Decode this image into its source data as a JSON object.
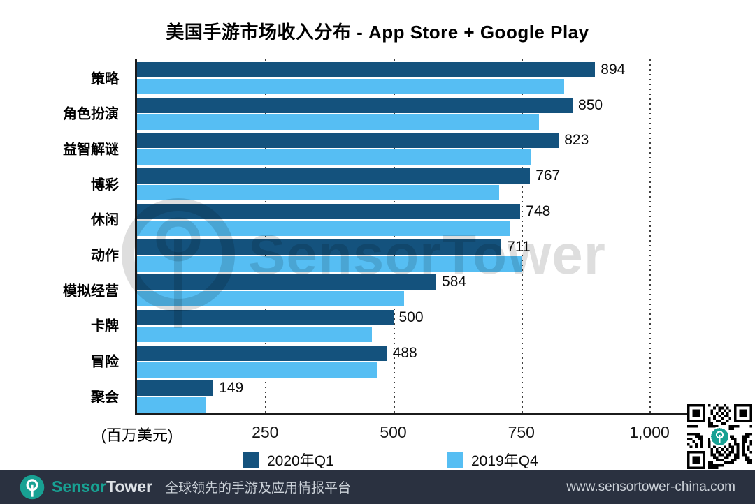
{
  "chart_data": {
    "type": "bar",
    "orientation": "horizontal",
    "title": "美国手游市场收入分布 - App Store + Google Play",
    "categories": [
      "策略",
      "角色扮演",
      "益智解谜",
      "博彩",
      "休闲",
      "动作",
      "模拟经营",
      "卡牌",
      "冒险",
      "聚会"
    ],
    "series": [
      {
        "name": "2020年Q1",
        "color": "#14527d",
        "show_value_labels": true,
        "values": [
          894,
          850,
          823,
          767,
          748,
          711,
          584,
          500,
          488,
          149
        ]
      },
      {
        "name": "2019年Q4",
        "color": "#56bef3",
        "show_value_labels": false,
        "values": [
          834,
          784,
          768,
          707,
          727,
          751,
          521,
          459,
          468,
          135
        ]
      }
    ],
    "xlabel": "(百万美元)",
    "xticks": [
      "250",
      "500",
      "750",
      "1,000"
    ],
    "xtick_values": [
      250,
      500,
      750,
      1000
    ],
    "xlim": [
      0,
      1000
    ],
    "grid": "dotted-vertical",
    "legend_position": "bottom"
  },
  "watermark": {
    "text": "SensorTower"
  },
  "footer": {
    "brand_sensor": "Sensor",
    "brand_tower": "Tower",
    "tagline": "全球领先的手游及应用情报平台",
    "url": "www.sensortower-china.com"
  },
  "colors": {
    "bar_2020q1": "#14527d",
    "bar_2019q4": "#56bef3",
    "footer_bg": "#2a3140",
    "brand_teal": "#18a193",
    "axis": "#1b1b1b"
  }
}
